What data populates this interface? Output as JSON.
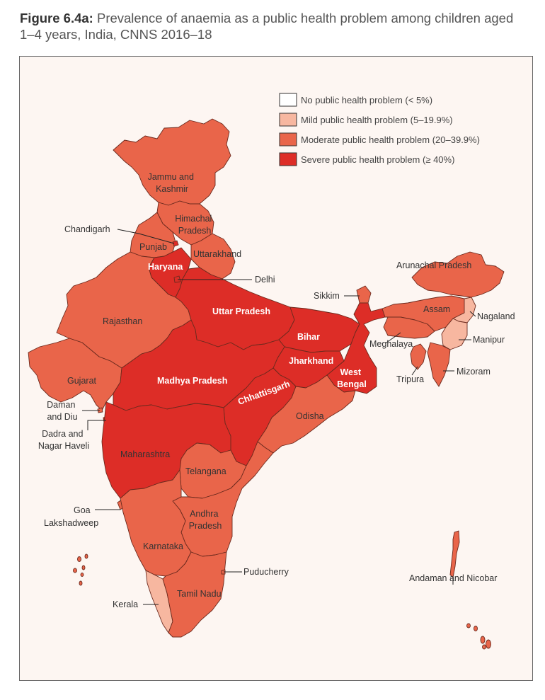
{
  "figure": {
    "label": "Figure 6.4a:",
    "title": "Prevalence of anaemia as a public health problem among children aged 1–4 years, India, CNNS 2016–18"
  },
  "colors": {
    "none": "#ffffff",
    "mild": "#f7b7a0",
    "moderate": "#e9654a",
    "severe": "#dd2d27",
    "border": "#6b2a1e",
    "background": "#fdf6f2"
  },
  "legend": [
    {
      "category": "none",
      "label": "No public health problem (< 5%)"
    },
    {
      "category": "mild",
      "label": "Mild public health problem (5–19.9%)"
    },
    {
      "category": "moderate",
      "label": "Moderate public health problem (20–39.9%)"
    },
    {
      "category": "severe",
      "label": "Severe public health problem (≥ 40%)"
    }
  ],
  "regions": {
    "jammu_kashmir": {
      "name": "Jammu and Kashmir",
      "category": "moderate"
    },
    "himachal": {
      "name": "Himachal Pradesh",
      "category": "moderate"
    },
    "punjab": {
      "name": "Punjab",
      "category": "moderate"
    },
    "chandigarh": {
      "name": "Chandigarh",
      "category": "severe"
    },
    "uttarakhand": {
      "name": "Uttarakhand",
      "category": "moderate"
    },
    "haryana": {
      "name": "Haryana",
      "category": "severe"
    },
    "delhi": {
      "name": "Delhi",
      "category": "severe"
    },
    "rajasthan": {
      "name": "Rajasthan",
      "category": "moderate"
    },
    "uttar_pradesh": {
      "name": "Uttar Pradesh",
      "category": "severe"
    },
    "bihar": {
      "name": "Bihar",
      "category": "severe"
    },
    "sikkim": {
      "name": "Sikkim",
      "category": "moderate"
    },
    "arunachal": {
      "name": "Arunachal Pradesh",
      "category": "moderate"
    },
    "assam": {
      "name": "Assam",
      "category": "moderate"
    },
    "nagaland": {
      "name": "Nagaland",
      "category": "mild"
    },
    "manipur": {
      "name": "Manipur",
      "category": "mild"
    },
    "meghalaya": {
      "name": "Meghalaya",
      "category": "moderate"
    },
    "tripura": {
      "name": "Tripura",
      "category": "moderate"
    },
    "mizoram": {
      "name": "Mizoram",
      "category": "moderate"
    },
    "gujarat": {
      "name": "Gujarat",
      "category": "moderate"
    },
    "madhya_pradesh": {
      "name": "Madhya Pradesh",
      "category": "severe"
    },
    "jharkhand": {
      "name": "Jharkhand",
      "category": "severe"
    },
    "west_bengal": {
      "name": "West Bengal",
      "category": "severe"
    },
    "chhattisgarh": {
      "name": "Chhattisgarh",
      "category": "severe"
    },
    "odisha": {
      "name": "Odisha",
      "category": "moderate"
    },
    "daman_diu": {
      "name": "Daman and Diu",
      "category": "moderate"
    },
    "dadra": {
      "name": "Dadra and Nagar Haveli",
      "category": "severe"
    },
    "maharashtra": {
      "name": "Maharashtra",
      "category": "severe"
    },
    "telangana": {
      "name": "Telangana",
      "category": "moderate"
    },
    "goa": {
      "name": "Goa",
      "category": "moderate"
    },
    "lakshadweep": {
      "name": "Lakshadweep",
      "category": "moderate"
    },
    "andhra": {
      "name": "Andhra Pradesh",
      "category": "moderate"
    },
    "karnataka": {
      "name": "Karnataka",
      "category": "moderate"
    },
    "puducherry": {
      "name": "Puducherry",
      "category": "moderate"
    },
    "tamil_nadu": {
      "name": "Tamil Nadu",
      "category": "moderate"
    },
    "kerala": {
      "name": "Kerala",
      "category": "mild"
    },
    "andaman": {
      "name": "Andaman and Nicobar",
      "category": "moderate"
    }
  },
  "labels": {
    "jammu_kashmir": [
      "Jammu and",
      "Kashmir"
    ],
    "himachal": [
      "Himachal",
      "Pradesh"
    ],
    "chandigarh": "Chandigarh",
    "punjab": "Punjab",
    "uttarakhand": "Uttarakhand",
    "haryana": "Haryana",
    "delhi": "Delhi",
    "rajasthan": "Rajasthan",
    "uttar_pradesh": "Uttar Pradesh",
    "sikkim": "Sikkim",
    "arunachal": "Arunachal Pradesh",
    "assam": "Assam",
    "nagaland": "Nagaland",
    "manipur": "Manipur",
    "meghalaya": "Meghalaya",
    "bihar": "Bihar",
    "jharkhand": "Jharkhand",
    "west_bengal": [
      "West",
      "Bengal"
    ],
    "tripura": "Tripura",
    "mizoram": "Mizoram",
    "gujarat": "Gujarat",
    "madhya_pradesh": "Madhya Pradesh",
    "chhattisgarh": "Chhattisgarh",
    "odisha": "Odisha",
    "daman_diu": [
      "Daman",
      "and Diu"
    ],
    "dadra": [
      "Dadra and",
      "Nagar Haveli"
    ],
    "maharashtra": "Maharashtra",
    "telangana": "Telangana",
    "goa": "Goa",
    "lakshadweep": "Lakshadweep",
    "andhra": [
      "Andhra",
      "Pradesh"
    ],
    "karnataka": "Karnataka",
    "puducherry": "Puducherry",
    "tamil_nadu": "Tamil Nadu",
    "kerala": "Kerala",
    "andaman": "Andaman and Nicobar"
  }
}
